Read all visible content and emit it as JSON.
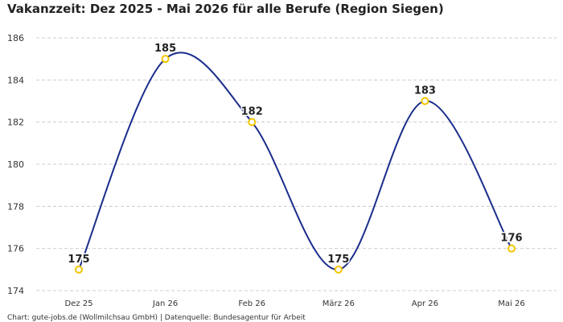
{
  "chart_data": {
    "type": "line",
    "title": "Vakanzzeit: Dez 2025 - Mai 2026 für alle Berufe (Region Siegen)",
    "categories": [
      "Dez 25",
      "Jan 26",
      "Feb 26",
      "März 26",
      "Apr 26",
      "Mai 26"
    ],
    "series": [
      {
        "values": [
          175,
          185,
          182,
          175,
          183,
          176
        ]
      }
    ],
    "ylim": [
      174,
      186
    ],
    "yticks": [
      174,
      176,
      178,
      180,
      182,
      184,
      186
    ],
    "grid": true,
    "colors": {
      "line": "#1a2d8a",
      "marker": "#f2c500",
      "grid": "#cccccc",
      "text": "#333333"
    },
    "source": "Chart: gute-jobs.de (Wollmilchsau GmbH) | Datenquelle: Bundesagentur für Arbeit"
  }
}
